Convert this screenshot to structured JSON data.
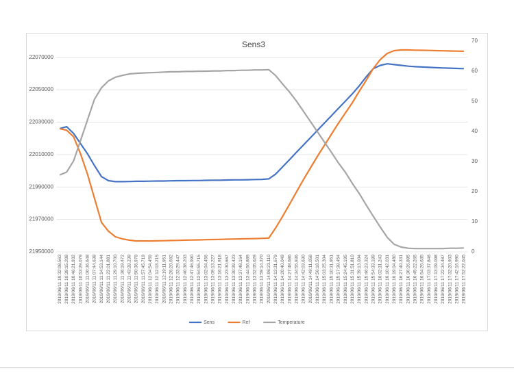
{
  "chart_data": {
    "type": "line",
    "title": "Sens3",
    "categories": [
      "2019/06/11 10:32:08.563",
      "2019/06/11 10:39:15.208",
      "2019/06/11 10:46:21.932",
      "2019/06/11 10:53:29.079",
      "2019/06/11 11:00:36.648",
      "2019/06/11 11:07:44.638",
      "2019/06/11 11:14:53.144",
      "2019/06/11 11:22:01.881",
      "2019/06/11 11:29:10.700",
      "2019/06/11 11:36:19.472",
      "2019/06/11 11:43:28.238",
      "2019/06/11 11:50:36.978",
      "2019/06/11 11:57:45.719",
      "2019/06/11 12:04:54.459",
      "2019/06/11 12:12:03.215",
      "2019/06/11 12:19:11.951",
      "2019/06/11 12:26:20.692",
      "2019/06/11 12:33:29.447",
      "2019/06/11 12:40:38.203",
      "2019/06/11 12:47:46.990",
      "2019/06/11 12:54:55.715",
      "2019/06/11 13:02:04.456",
      "2019/06/11 13:09:13.227",
      "2019/06/11 13:16:21.918",
      "2019/06/11 13:23:30.667",
      "2019/06/11 13:30:39.423",
      "2019/06/11 13:37:48.164",
      "2019/06/11 13:44:56.889",
      "2019/06/11 13:52:05.629",
      "2019/06/11 13:59:14.370",
      "2019/06/11 14:06:23.110",
      "2019/06/11 14:13:31.679",
      "2019/06/11 14:20:40.049",
      "2019/06/11 14:27:48.686",
      "2019/06/11 14:34:55.936",
      "2019/06/11 14:42:03.630",
      "2019/06/11 14:49:11.058",
      "2019/06/11 14:56:18.501",
      "2019/06/11 15:03:25.304",
      "2019/06/11 15:10:31.951",
      "2019/06/11 15:17:38.454",
      "2019/06/11 15:24:45.195",
      "2019/06/11 15:31:51.810",
      "2019/06/11 15:39:13.004",
      "2019/06/11 15:46:23.324",
      "2019/06/11 15:54:33.189",
      "2019/06/11 16:02:31.243",
      "2019/06/11 16:10:42.031",
      "2019/06/11 16:19:04.480",
      "2019/06/11 16:27:40.331",
      "2019/06/11 16:36:26.885",
      "2019/06/11 16:45:22.265",
      "2019/06/11 16:54:26.635",
      "2019/06/11 17:03:37.846",
      "2019/06/11 17:13:09.098",
      "2019/06/11 17:22:34.487",
      "2019/06/11 17:32:20.903",
      "2019/06/11 17:42:16.990",
      "2019/06/11 17:52:22.045"
    ],
    "series": [
      {
        "name": "Sens",
        "color": "#4472c4",
        "values": [
          22026000,
          22027200,
          22023000,
          22016700,
          22010400,
          22003200,
          21996400,
          21993900,
          21993300,
          21993300,
          21993400,
          21993500,
          21993500,
          21993600,
          21993700,
          21993700,
          21993800,
          21993900,
          21993900,
          21994000,
          21994000,
          21994100,
          21994200,
          21994200,
          21994300,
          21994400,
          21994400,
          21994500,
          21994600,
          21994700,
          21995000,
          21998000,
          22002500,
          22007000,
          22011500,
          22016000,
          22020500,
          22025000,
          22029500,
          22034000,
          22038500,
          22043000,
          22047500,
          22052500,
          22058000,
          22063000,
          22065000,
          22066000,
          22065500,
          22065000,
          22064500,
          22064200,
          22064000,
          22063800,
          22063600,
          22063400,
          22063300,
          22063100,
          22063000
        ]
      },
      {
        "name": "Ref",
        "color": "#ed7d31",
        "values": [
          22026000,
          22025000,
          22021000,
          22010400,
          21997700,
          21983000,
          21968100,
          21962700,
          21959300,
          21958000,
          21957200,
          21956700,
          21956700,
          21956700,
          21956800,
          21956900,
          21957000,
          21957100,
          21957200,
          21957300,
          21957400,
          21957500,
          21957600,
          21957700,
          21957800,
          21957900,
          21958000,
          21958100,
          21958200,
          21958300,
          21958500,
          21964800,
          21972000,
          21979500,
          21987100,
          21994700,
          22001900,
          22009100,
          22015800,
          22022600,
          22029400,
          22035700,
          22042000,
          22049200,
          22055900,
          22063100,
          22068600,
          22072400,
          22074100,
          22074500,
          22074500,
          22074400,
          22074300,
          22074200,
          22074100,
          22074000,
          22073900,
          22073800,
          22073700
        ]
      },
      {
        "name": "Temperature",
        "color": "#a5a5a5",
        "axis": "y2",
        "values": [
          25.5,
          26.5,
          30.2,
          37,
          43.9,
          50.7,
          54.5,
          56.8,
          58,
          58.6,
          59.1,
          59.3,
          59.4,
          59.5,
          59.6,
          59.7,
          59.8,
          59.8,
          59.9,
          59.9,
          60,
          60,
          60.1,
          60.1,
          60.2,
          60.2,
          60.3,
          60.3,
          60.4,
          60.4,
          60.5,
          58.5,
          55.7,
          53,
          50,
          46.6,
          43.2,
          39.8,
          36.4,
          33,
          29.5,
          26.4,
          22.7,
          19.3,
          15.5,
          11.8,
          8.2,
          4.8,
          2.5,
          1.6,
          1.2,
          1.1,
          1.1,
          1.1,
          1.1,
          1.1,
          1.2,
          1.2,
          1.3
        ]
      }
    ],
    "ylim": [
      21950000,
      22080000
    ],
    "yticks": [
      21950000,
      21970000,
      21990000,
      22010000,
      22030000,
      22050000,
      22070000
    ],
    "y2lim": [
      0,
      70
    ],
    "y2ticks": [
      0,
      10,
      20,
      30,
      40,
      50,
      60,
      70
    ],
    "grid": true,
    "legend": "bottom"
  }
}
